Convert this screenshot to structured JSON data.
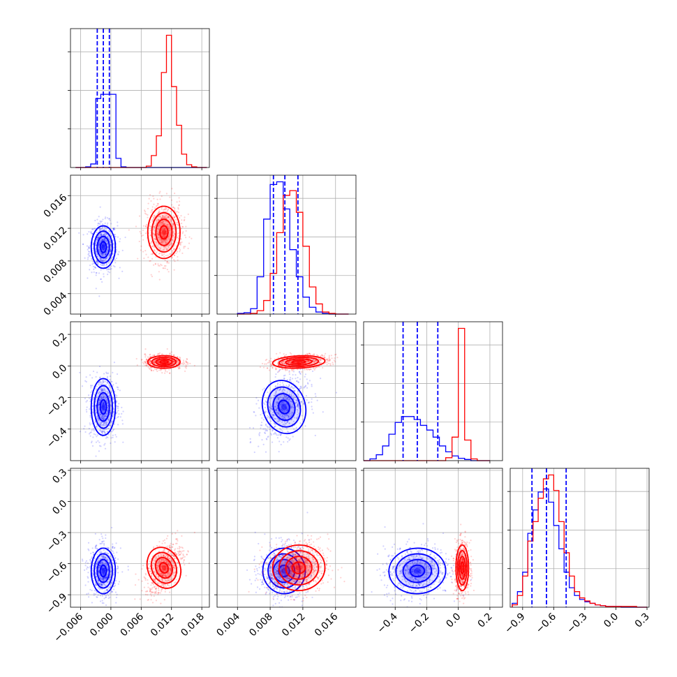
{
  "chart_data": {
    "type": "corner",
    "layout": "lower-triangle 4x4",
    "grid": true,
    "colors": {
      "series_a": "#0000ff",
      "series_b": "#ff0000"
    },
    "params": [
      {
        "range": [
          -0.008,
          0.0195
        ],
        "ticks": [
          -0.006,
          0.0,
          0.006,
          0.012,
          0.018
        ],
        "tick_labels": [
          "−0.006",
          "0.000",
          "0.006",
          "0.012",
          "0.018"
        ]
      },
      {
        "range": [
          0.0015,
          0.0185
        ],
        "ticks": [
          0.004,
          0.008,
          0.012,
          0.016
        ],
        "tick_labels": [
          "0.004",
          "0.008",
          "0.012",
          "0.016"
        ]
      },
      {
        "range": [
          -0.6,
          0.28
        ],
        "ticks": [
          -0.4,
          -0.2,
          0.0,
          0.2
        ],
        "tick_labels": [
          "−0.4",
          "−0.2",
          "0.0",
          "0.2"
        ]
      },
      {
        "range": [
          -1.02,
          0.32
        ],
        "ticks": [
          -0.9,
          -0.6,
          -0.3,
          0.0,
          0.3
        ],
        "tick_labels": [
          "−0.9",
          "−0.6",
          "−0.3",
          "0.0",
          "0.3"
        ]
      }
    ],
    "series": [
      {
        "mean": [
          -0.0015,
          0.0097,
          -0.26,
          -0.67
        ],
        "sd": [
          0.0012,
          0.0013,
          0.09,
          0.11
        ],
        "corr": [
          [
            1,
            0,
            0,
            0
          ],
          [
            0,
            1,
            0.4,
            0.1
          ],
          [
            0,
            0.4,
            1,
            0.1
          ],
          [
            0,
            0.1,
            0.1,
            1
          ]
        ],
        "quantiles": [
          [
            -0.0027,
            -0.0015,
            -0.0003
          ],
          [
            0.0084,
            0.0098,
            0.0114
          ],
          [
            -0.35,
            -0.26,
            -0.13
          ],
          [
            -0.81,
            -0.67,
            -0.48
          ]
        ]
      },
      {
        "mean": [
          0.0105,
          0.0115,
          0.025,
          -0.64
        ],
        "sd": [
          0.0016,
          0.0016,
          0.02,
          0.11
        ],
        "corr": [
          [
            1,
            0,
            0,
            0.5
          ],
          [
            0,
            1,
            0.3,
            0.1
          ],
          [
            0,
            0.3,
            1,
            0
          ],
          [
            0.5,
            0.1,
            0,
            1
          ]
        ],
        "quantiles": [
          [],
          [],
          [],
          []
        ]
      }
    ],
    "histograms": [
      {
        "bin_edges": [
          -0.007,
          -0.006,
          -0.005,
          -0.004,
          -0.003,
          -0.002,
          -0.001,
          0.0,
          0.001,
          0.002,
          0.003,
          0.004,
          0.005,
          0.006,
          0.007,
          0.008,
          0.009,
          0.01,
          0.011,
          0.012,
          0.013,
          0.014,
          0.015,
          0.016,
          0.017,
          0.018,
          0.019
        ],
        "series_a": [
          0,
          0,
          1,
          5,
          98,
          104,
          104,
          104,
          13,
          1,
          0,
          0,
          0,
          0,
          0,
          0,
          0,
          0,
          0,
          0,
          0,
          0,
          0,
          0,
          0,
          0
        ],
        "series_b": [
          0,
          0,
          0,
          0,
          0,
          0,
          0,
          0,
          0,
          0,
          0,
          0,
          0,
          0,
          2,
          17,
          45,
          135,
          188,
          115,
          60,
          19,
          4,
          1,
          0,
          0
        ]
      },
      {
        "bin_edges": [
          0.004,
          0.0048,
          0.0056,
          0.0064,
          0.0072,
          0.008,
          0.0088,
          0.0096,
          0.0104,
          0.0112,
          0.012,
          0.0128,
          0.0136,
          0.0144,
          0.0152,
          0.016,
          0.0168,
          0.0176
        ],
        "series_a": [
          1,
          2,
          8,
          55,
          140,
          191,
          195,
          155,
          95,
          55,
          25,
          10,
          3,
          1,
          0,
          0,
          0
        ],
        "series_b": [
          0,
          0,
          1,
          5,
          20,
          60,
          120,
          175,
          182,
          150,
          100,
          40,
          15,
          3,
          1,
          0,
          0
        ]
      },
      {
        "bin_edges": [
          -0.6,
          -0.56,
          -0.52,
          -0.48,
          -0.44,
          -0.4,
          -0.36,
          -0.32,
          -0.28,
          -0.24,
          -0.2,
          -0.16,
          -0.12,
          -0.08,
          -0.04,
          0.0,
          0.04,
          0.08,
          0.12,
          0.16,
          0.2
        ],
        "series_a": [
          0,
          3,
          10,
          25,
          45,
          65,
          75,
          75,
          70,
          60,
          52,
          40,
          25,
          15,
          8,
          4,
          2,
          0,
          0,
          0
        ],
        "series_b": [
          0,
          0,
          0,
          0,
          0,
          0,
          0,
          0,
          0,
          0,
          0,
          0,
          0,
          5,
          40,
          225,
          35,
          3,
          0,
          0
        ]
      },
      {
        "bin_edges": [
          -1.0,
          -0.95,
          -0.9,
          -0.85,
          -0.8,
          -0.75,
          -0.7,
          -0.65,
          -0.6,
          -0.55,
          -0.5,
          -0.45,
          -0.4,
          -0.35,
          -0.3,
          -0.25,
          -0.2,
          -0.15,
          -0.1,
          -0.05,
          0.0,
          0.05,
          0.1,
          0.15,
          0.2,
          0.25,
          0.3
        ],
        "series_a": [
          5,
          20,
          45,
          95,
          125,
          148,
          152,
          135,
          105,
          75,
          45,
          25,
          15,
          10,
          7,
          5,
          3,
          2,
          1,
          1,
          1,
          0,
          0,
          0,
          0,
          0
        ],
        "series_b": [
          3,
          15,
          40,
          85,
          110,
          140,
          165,
          170,
          150,
          110,
          70,
          40,
          20,
          12,
          8,
          5,
          3,
          2,
          1,
          1,
          1,
          1,
          1,
          1,
          0,
          0
        ]
      }
    ]
  }
}
